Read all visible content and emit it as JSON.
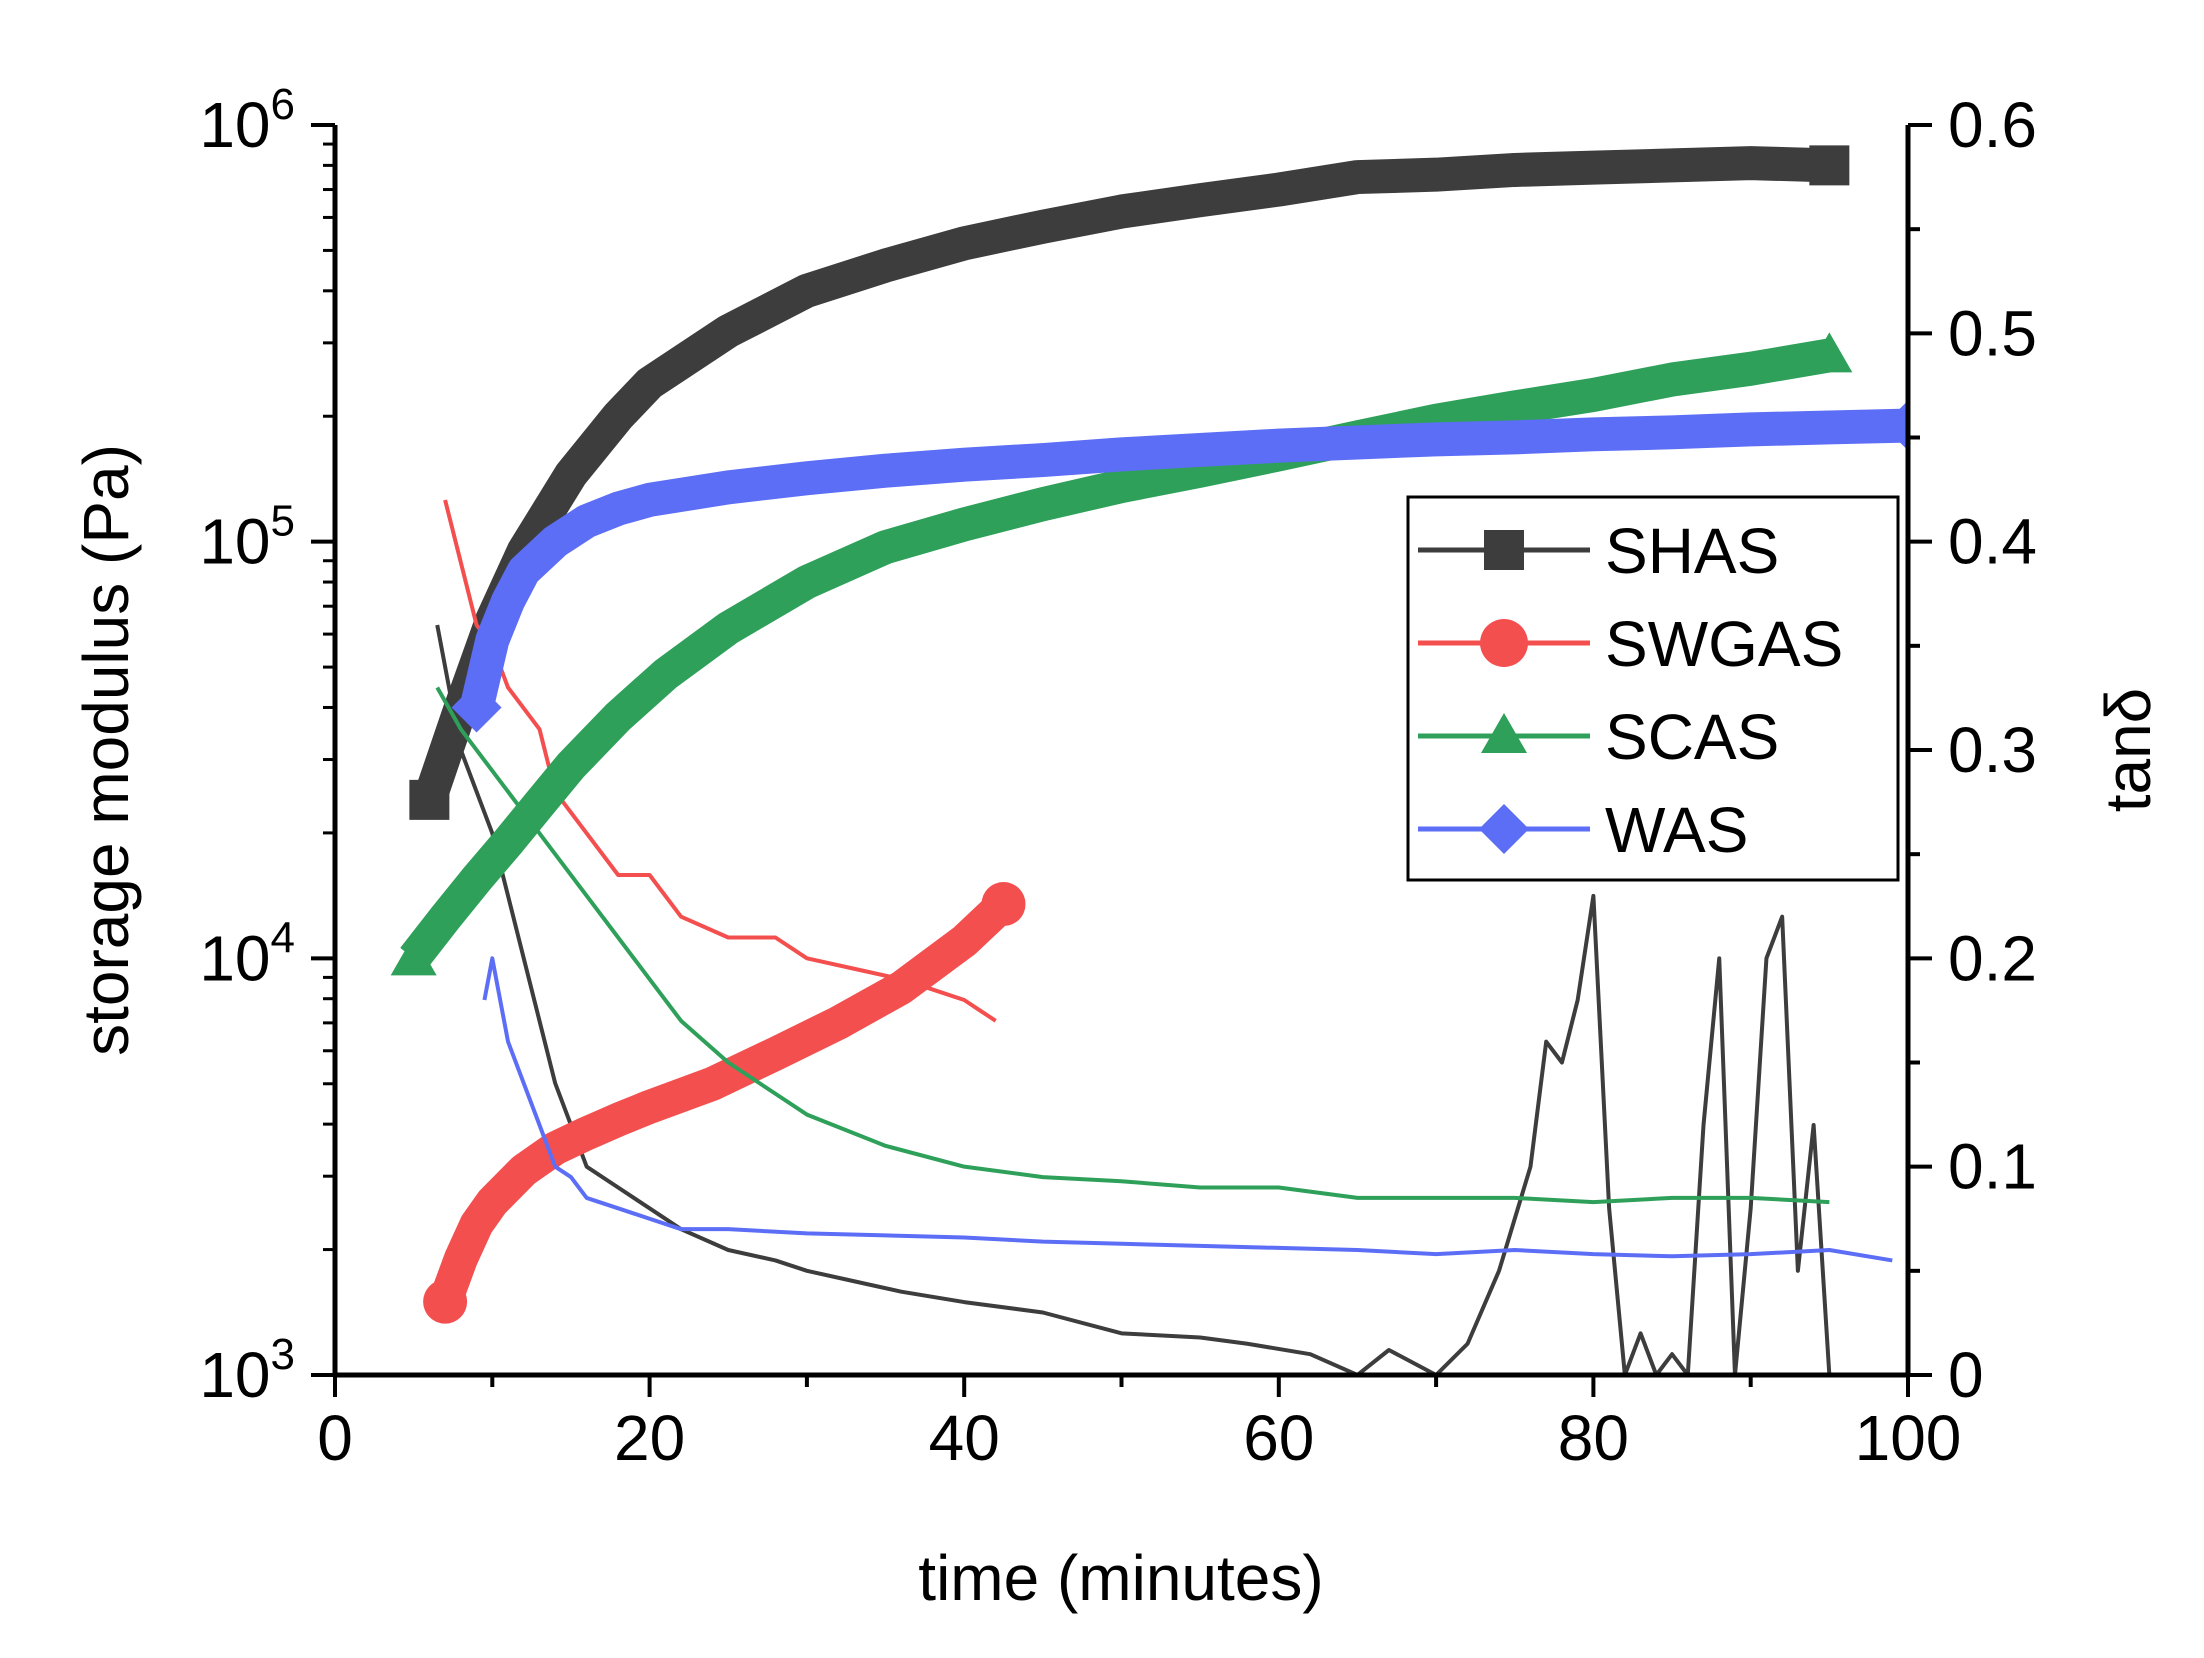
{
  "chart_data": {
    "type": "line",
    "title": "",
    "xlabel": "time (minutes)",
    "ylabel_left": "storage modulus (Pa)",
    "ylabel_right": "tanδ",
    "xlim": [
      0,
      100
    ],
    "ylim_left": [
      1000,
      1000000
    ],
    "ylim_left_scale": "log",
    "ylim_right": [
      0,
      0.6
    ],
    "x_ticks": [
      0,
      20,
      40,
      60,
      80,
      100
    ],
    "x_tick_labels": [
      "0",
      "20",
      "40",
      "60",
      "80",
      "100"
    ],
    "y_left_ticks": [
      {
        "value": 1000,
        "base": "10",
        "exp": "3"
      },
      {
        "value": 10000,
        "base": "10",
        "exp": "4"
      },
      {
        "value": 100000,
        "base": "10",
        "exp": "5"
      },
      {
        "value": 1000000,
        "base": "10",
        "exp": "6"
      }
    ],
    "y_right_ticks": [
      0,
      0.1,
      0.2,
      0.3,
      0.4,
      0.5,
      0.6
    ],
    "y_right_tick_labels": [
      "0",
      "0.1",
      "0.2",
      "0.3",
      "0.4",
      "0.5",
      "0.6"
    ],
    "grid": false,
    "legend_position": "center-right",
    "series": [
      {
        "name": "SHAS",
        "color": "#3d3d3d",
        "marker": "square",
        "storage_modulus": {
          "x": [
            6,
            8,
            10,
            12,
            15,
            18,
            20,
            25,
            30,
            35,
            40,
            45,
            50,
            55,
            60,
            65,
            70,
            75,
            80,
            85,
            90,
            95
          ],
          "y": [
            24000,
            40000,
            65000,
            95000,
            145000,
            200000,
            240000,
            320000,
            400000,
            460000,
            520000,
            570000,
            620000,
            660000,
            700000,
            750000,
            760000,
            780000,
            790000,
            800000,
            810000,
            800000
          ]
        },
        "tan_delta": {
          "x": [
            6.5,
            8,
            10,
            12,
            14,
            16,
            18,
            20,
            22,
            25,
            28,
            30,
            33,
            36,
            40,
            45,
            50,
            55,
            58,
            62,
            65,
            67,
            70,
            72,
            74,
            76,
            77,
            78,
            79,
            80,
            81,
            82,
            83,
            84,
            85,
            86,
            87,
            88,
            89,
            90,
            91,
            92,
            93,
            94,
            95
          ],
          "y": [
            0.36,
            0.3,
            0.26,
            0.2,
            0.14,
            0.1,
            0.09,
            0.08,
            0.07,
            0.06,
            0.055,
            0.05,
            0.045,
            0.04,
            0.035,
            0.03,
            0.02,
            0.018,
            0.015,
            0.01,
            0.0,
            0.012,
            0.0,
            0.015,
            0.05,
            0.1,
            0.16,
            0.15,
            0.18,
            0.23,
            0.08,
            0.0,
            0.02,
            0.0,
            0.01,
            0.0,
            0.12,
            0.2,
            0.0,
            0.08,
            0.2,
            0.22,
            0.05,
            0.12,
            0.0
          ]
        }
      },
      {
        "name": "SWGAS",
        "color": "#f44f4f",
        "marker": "circle",
        "storage_modulus": {
          "x": [
            7,
            8,
            9,
            10,
            12,
            14,
            16,
            18,
            20,
            24,
            28,
            32,
            36,
            40,
            42.5
          ],
          "y": [
            1500,
            1900,
            2300,
            2600,
            3100,
            3500,
            3800,
            4100,
            4400,
            5000,
            5900,
            7000,
            8500,
            11000,
            13500
          ]
        },
        "tan_delta": {
          "x": [
            7,
            8,
            9,
            10,
            11,
            12,
            13,
            14,
            16,
            18,
            20,
            22,
            25,
            28,
            30,
            33,
            36,
            38,
            40,
            41,
            42
          ],
          "y": [
            0.42,
            0.39,
            0.36,
            0.35,
            0.33,
            0.32,
            0.31,
            0.28,
            0.26,
            0.24,
            0.24,
            0.22,
            0.21,
            0.21,
            0.2,
            0.195,
            0.19,
            0.185,
            0.18,
            0.175,
            0.17
          ]
        }
      },
      {
        "name": "SCAS",
        "color": "#2ea05a",
        "marker": "triangle",
        "storage_modulus": {
          "x": [
            5,
            7,
            9,
            11,
            13,
            15,
            18,
            21,
            25,
            30,
            35,
            40,
            45,
            50,
            55,
            60,
            65,
            70,
            75,
            80,
            85,
            90,
            95
          ],
          "y": [
            10000,
            12500,
            15500,
            19000,
            23500,
            29000,
            38000,
            48000,
            62000,
            80000,
            97000,
            110000,
            123000,
            136000,
            148000,
            162000,
            178000,
            195000,
            210000,
            225000,
            245000,
            260000,
            280000
          ]
        },
        "tan_delta": {
          "x": [
            6.5,
            8,
            10,
            12,
            14,
            16,
            18,
            20,
            22,
            25,
            28,
            30,
            35,
            40,
            45,
            50,
            55,
            60,
            65,
            70,
            75,
            80,
            85,
            90,
            95
          ],
          "y": [
            0.33,
            0.31,
            0.29,
            0.27,
            0.25,
            0.23,
            0.21,
            0.19,
            0.17,
            0.15,
            0.135,
            0.125,
            0.11,
            0.1,
            0.095,
            0.093,
            0.09,
            0.09,
            0.085,
            0.085,
            0.085,
            0.083,
            0.085,
            0.085,
            0.083
          ]
        }
      },
      {
        "name": "WAS",
        "color": "#5d6ef6",
        "marker": "diamond",
        "storage_modulus": {
          "x": [
            9,
            10,
            11,
            12,
            14,
            16,
            18,
            20,
            25,
            30,
            35,
            40,
            45,
            50,
            55,
            60,
            65,
            70,
            75,
            80,
            85,
            90,
            95,
            100
          ],
          "y": [
            40000,
            58000,
            72000,
            85000,
            100000,
            112000,
            120000,
            126000,
            135000,
            142000,
            148000,
            153000,
            157000,
            162000,
            166000,
            170000,
            173000,
            176000,
            178000,
            181000,
            183000,
            186000,
            188000,
            190000
          ]
        },
        "tan_delta": {
          "x": [
            9.5,
            10,
            11,
            12,
            13,
            14,
            15,
            16,
            18,
            20,
            22,
            25,
            30,
            35,
            40,
            45,
            50,
            55,
            60,
            65,
            70,
            75,
            80,
            85,
            90,
            95,
            99
          ],
          "y": [
            0.18,
            0.2,
            0.16,
            0.14,
            0.12,
            0.1,
            0.095,
            0.085,
            0.08,
            0.075,
            0.07,
            0.07,
            0.068,
            0.067,
            0.066,
            0.064,
            0.063,
            0.062,
            0.061,
            0.06,
            0.058,
            0.06,
            0.058,
            0.057,
            0.058,
            0.06,
            0.055
          ]
        }
      }
    ]
  }
}
